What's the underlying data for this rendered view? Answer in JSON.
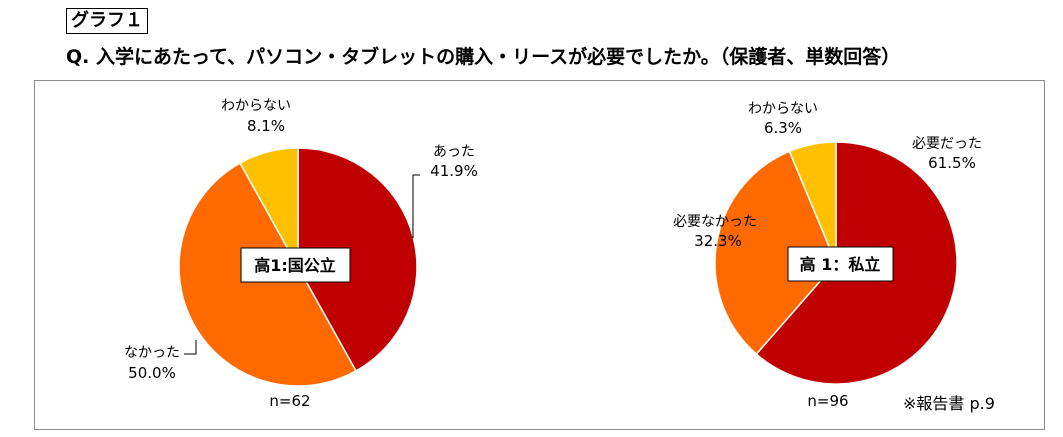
{
  "graph_label": "グラフ１",
  "question": "Q.  入学にあたって、パソコン・タブレットの購入・リースが必要でしたか。（保護者、単数回答）",
  "note": "※報告書 p.9",
  "chart_data": [
    {
      "type": "pie",
      "title": "高1:国公立",
      "n_label": "n=62",
      "slices": [
        {
          "label": "あった",
          "value": 41.9,
          "value_label": "41.9%",
          "color": "#C00000"
        },
        {
          "label": "なかった",
          "value": 50.0,
          "value_label": "50.0%",
          "color": "#FF6A00"
        },
        {
          "label": "わからない",
          "value": 8.1,
          "value_label": "8.1%",
          "color": "#FFC000"
        }
      ]
    },
    {
      "type": "pie",
      "title": "高 1：私立",
      "n_label": "n=96",
      "slices": [
        {
          "label": "必要だった",
          "value": 61.5,
          "value_label": "61.5%",
          "color": "#C00000"
        },
        {
          "label": "必要なかった",
          "value": 32.3,
          "value_label": "32.3%",
          "color": "#FF6A00"
        },
        {
          "label": "わからない",
          "value": 6.3,
          "value_label": "6.3%",
          "color": "#FFC000"
        }
      ]
    }
  ]
}
